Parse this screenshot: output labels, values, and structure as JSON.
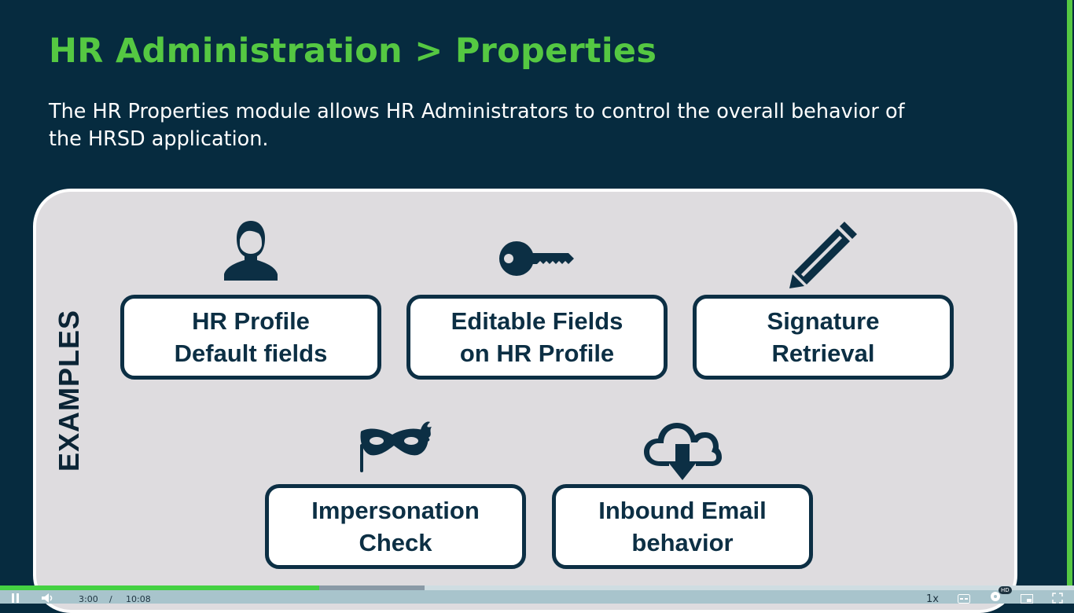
{
  "slide": {
    "title": "HR Administration > Properties",
    "description": "The HR Properties module allows HR Administrators to control the overall behavior of the HRSD application.",
    "examples_label": "EXAMPLES",
    "cards": [
      {
        "line1": "HR Profile",
        "line2": "Default fields",
        "icon": "person-icon"
      },
      {
        "line1": "Editable Fields",
        "line2": "on HR Profile",
        "icon": "key-icon"
      },
      {
        "line1": "Signature",
        "line2": "Retrieval",
        "icon": "pencil-icon"
      },
      {
        "line1": "Impersonation",
        "line2": "Check",
        "icon": "mask-icon"
      },
      {
        "line1": "Inbound Email",
        "line2": "behavior",
        "icon": "cloud-download-icon"
      }
    ]
  },
  "player": {
    "current_time": "3:00",
    "separator": "/",
    "duration": "10:08",
    "progress_fraction": 0.297,
    "buffered_fraction": 0.395,
    "speed": "1x",
    "quality_badge": "HD",
    "icons": [
      "pause-icon",
      "volume-icon",
      "captions-icon",
      "settings-icon",
      "picture-in-picture-icon",
      "fullscreen-icon"
    ]
  },
  "colors": {
    "background": "#062b3f",
    "title": "#55c842",
    "panel": "#dedcdf",
    "card_border": "#0c2f44",
    "progress": "#44d142"
  }
}
